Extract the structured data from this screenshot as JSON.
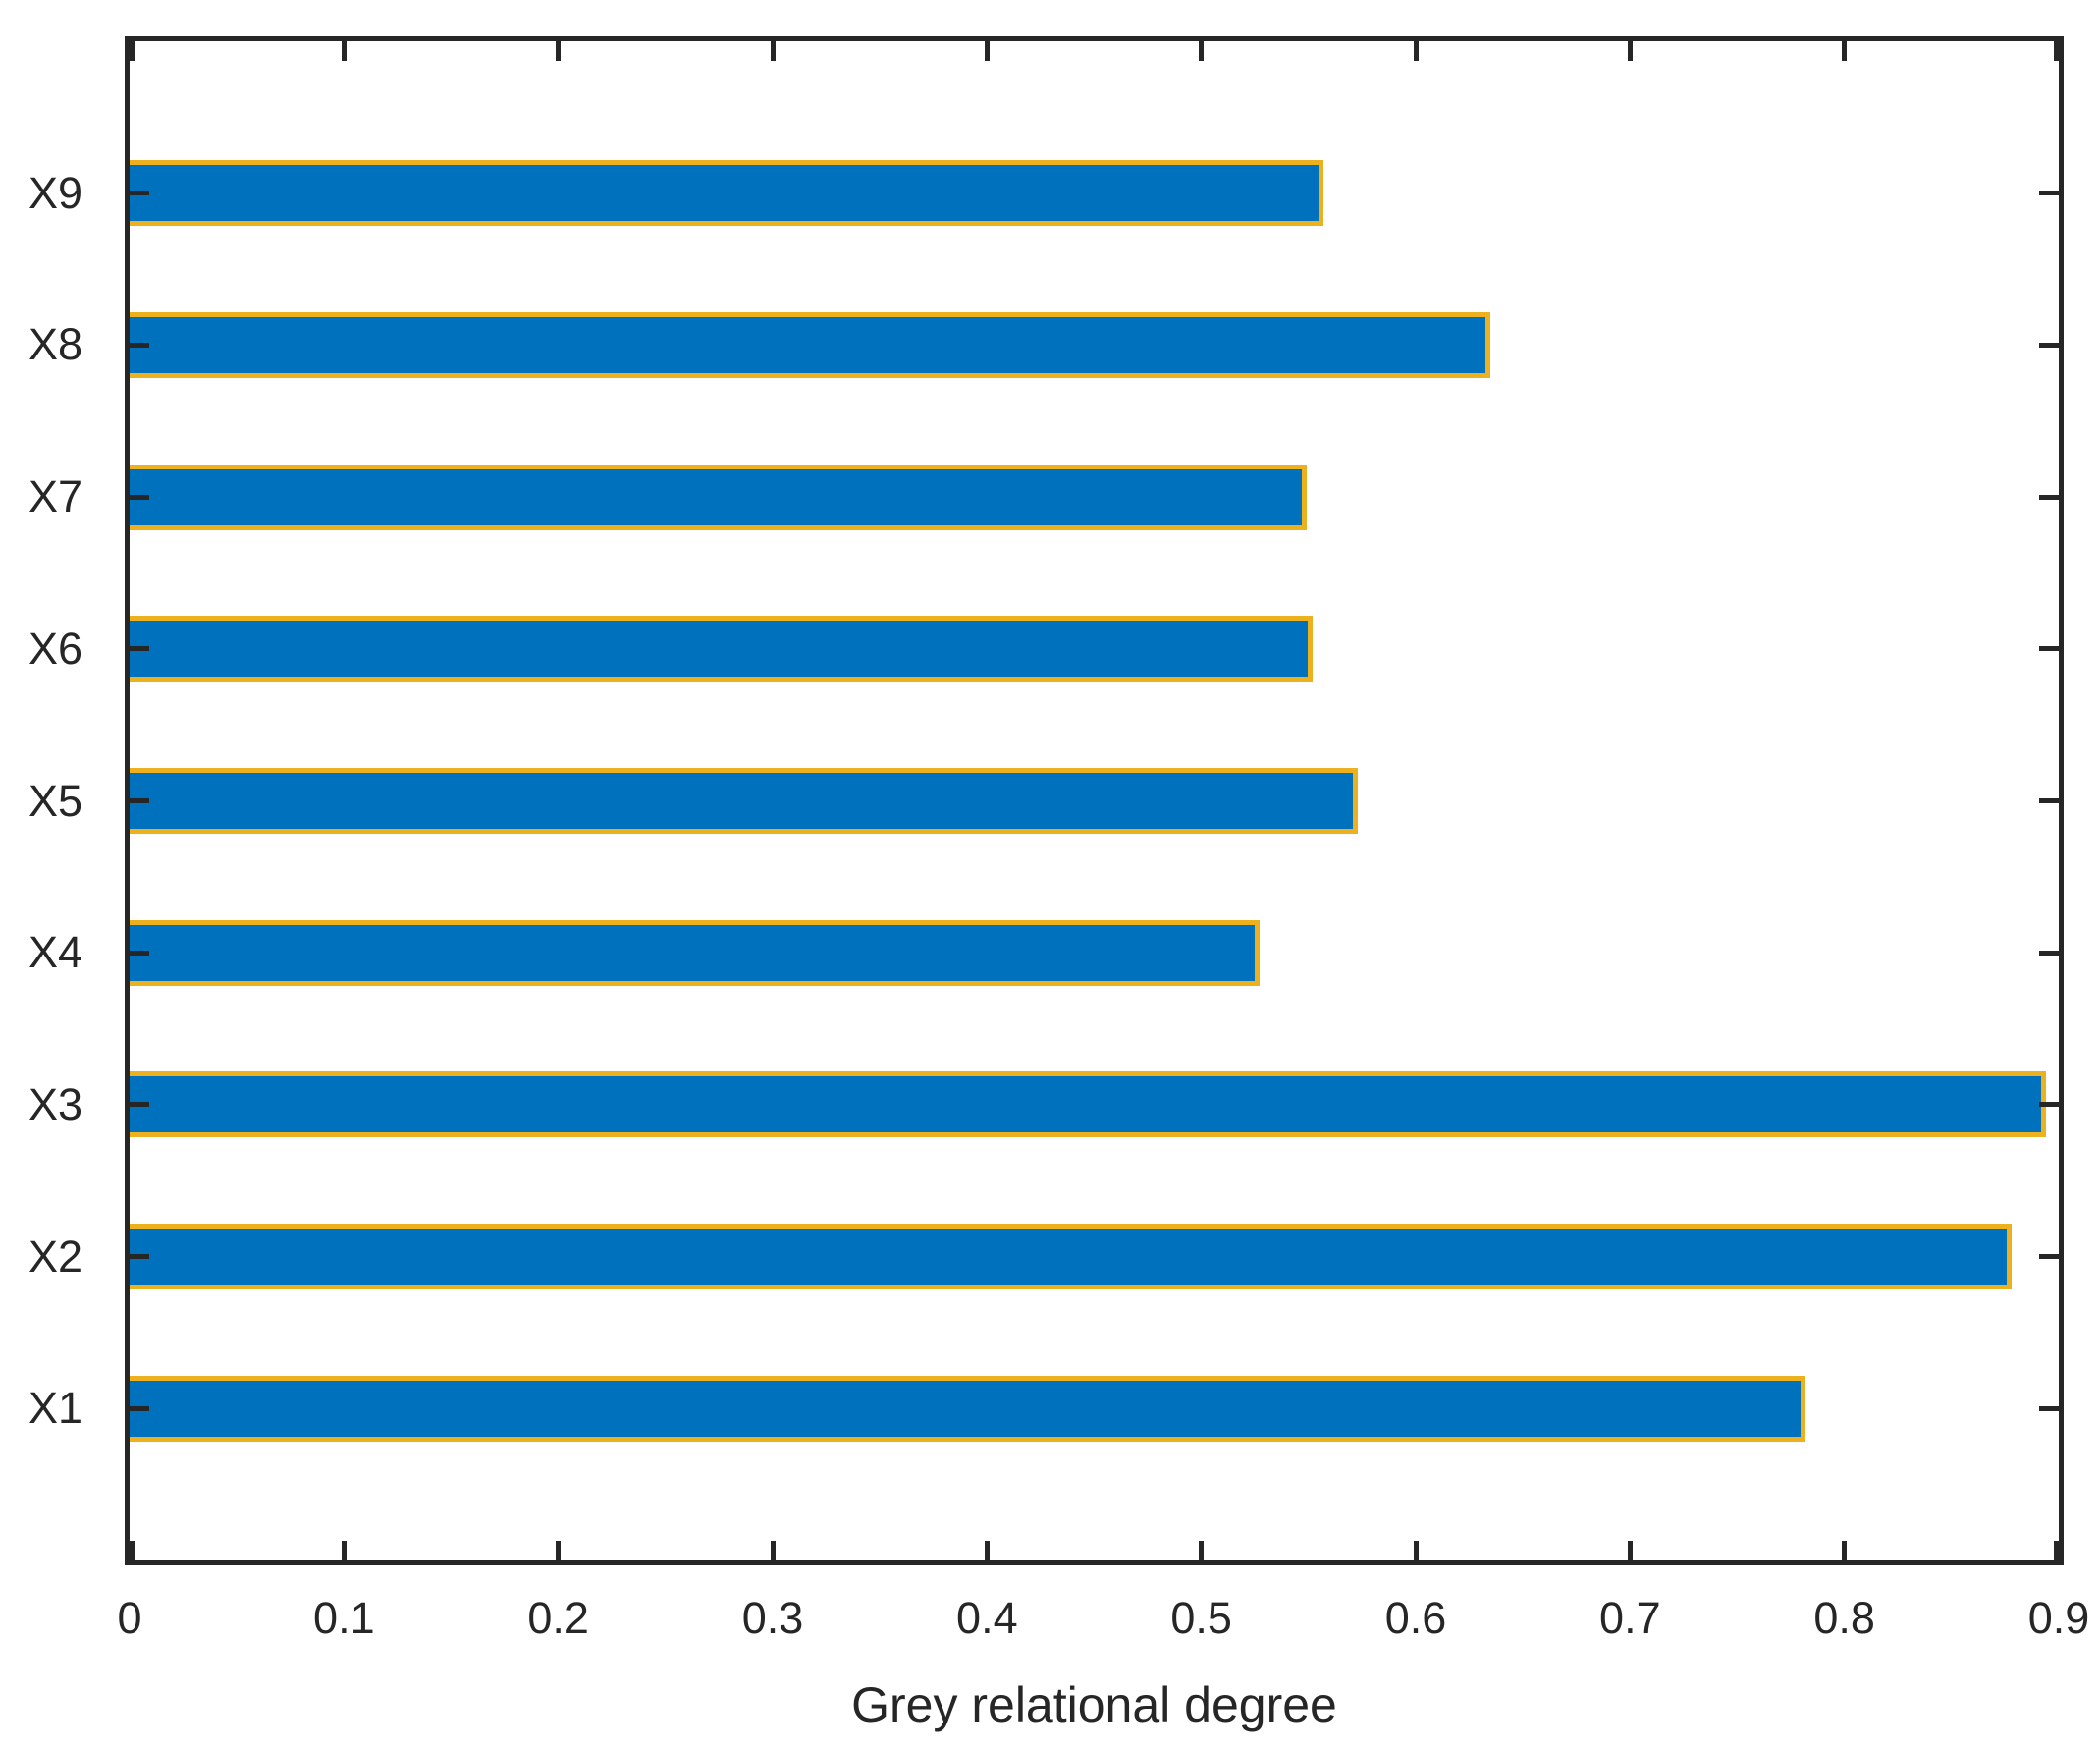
{
  "chart_data": {
    "type": "bar",
    "orientation": "horizontal",
    "title": "",
    "xlabel": "Grey relational degree",
    "ylabel": "",
    "categories": [
      "X1",
      "X2",
      "X3",
      "X4",
      "X5",
      "X6",
      "X7",
      "X8",
      "X9"
    ],
    "values": [
      0.782,
      0.878,
      0.894,
      0.527,
      0.573,
      0.552,
      0.549,
      0.635,
      0.557
    ],
    "category_order": "X1 at bottom, X9 at top",
    "xlim": [
      0,
      0.9
    ],
    "xticks": [
      0,
      0.1,
      0.2,
      0.3,
      0.4,
      0.5,
      0.6,
      0.7,
      0.8,
      0.9
    ],
    "xtick_labels": [
      "0",
      "0.1",
      "0.2",
      "0.3",
      "0.4",
      "0.5",
      "0.6",
      "0.7",
      "0.8",
      "0.9"
    ],
    "grid": false,
    "legend": null,
    "tick_direction": "in",
    "box": true,
    "colors": {
      "bar_fill": "#0072BD",
      "bar_edge": "#EDB120",
      "axis": "#262626",
      "text": "#262626",
      "background": "#FFFFFF"
    }
  }
}
